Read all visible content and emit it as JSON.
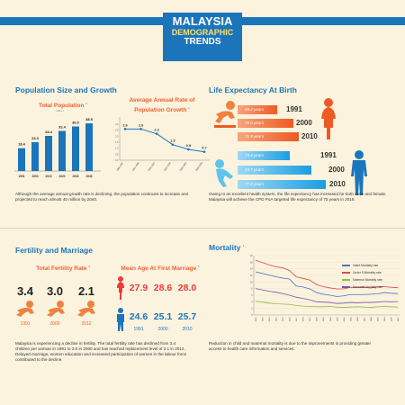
{
  "header": {
    "line1": "MALAYSIA",
    "line2": "DEMOGRAPHIC",
    "line3": "TRENDS"
  },
  "population": {
    "title": "Population Size and Growth",
    "total_title": "Total Population",
    "total_unit": "million",
    "growth_title_1": "Average Annual Rate of",
    "growth_title_2": "Population Growth",
    "paragraph_1": "Although the average annual growth rate is declining, the population continues to increase and",
    "paragraph_2": "projected to reach almost 40 million by 2040."
  },
  "life": {
    "title": "Life Expectancy At Birth",
    "female": [
      {
        "value": "69.2 years",
        "year": "1991"
      },
      {
        "value": "70.0 years",
        "year": "2000"
      },
      {
        "value": "71.9 years",
        "year": "2010"
      }
    ],
    "male": [
      {
        "value": "73.4 years",
        "year": "1991"
      },
      {
        "value": "74.7 years",
        "year": "2000"
      },
      {
        "value": "77.0 years",
        "year": "2010"
      }
    ],
    "paragraph_1": "Owing to an excellent health system, the life expectancy has increased for both male and female.",
    "paragraph_2": "Malaysia will achieve the  CPD PoA targeted life expectancy of 75 years in 2015."
  },
  "fertility": {
    "title": "Fertility and Marriage",
    "tfr_title": "Total Fertility Rate",
    "tfr": [
      {
        "value": "3.4",
        "year": "1991"
      },
      {
        "value": "3.0",
        "year": "2000"
      },
      {
        "value": "2.1",
        "year": "2012"
      }
    ],
    "age_title": "Mean Age At First Marriage",
    "female_ages": [
      "27.9",
      "28.6",
      "28.0"
    ],
    "male_ages": [
      "24.6",
      "25.1",
      "25.7"
    ],
    "age_years": [
      "1991",
      "2000",
      "2010"
    ],
    "paragraph_1": "Malaysia is experiencing a decline in fertility. The total fertility rate has declined from 3.4",
    "paragraph_2": "children per woman in 1991 to 3.0 in 2000 and has reached replacement level of 2.1 in 2012.",
    "paragraph_3": "Delayed marriage, women education and increased participation of women in the labour force",
    "paragraph_4": "contributed to the decline."
  },
  "mortality": {
    "title": "Mortality",
    "paragraph_1": "Reduction in child and maternal mortality is due to the improvements in providing greater",
    "paragraph_2": "access to health care information and services."
  },
  "colors": {
    "blue": "#1b75bb",
    "orange": "#f06030",
    "red": "#ee3a3a",
    "background": "#fbf3de"
  },
  "chart_data": [
    {
      "type": "bar",
      "title": "Total Population",
      "categories": [
        "1991",
        "2000",
        "2010",
        "2020",
        "2030",
        "2040"
      ],
      "values": [
        18.4,
        23.3,
        28.4,
        32.4,
        36.0,
        38.5
      ],
      "ylim": [
        0,
        40
      ]
    },
    {
      "type": "line",
      "title": "Average Annual Rate of Population Growth",
      "categories": [
        "1980-1991",
        "1991-2000",
        "2000-2010",
        "2010-2020",
        "2020-2030",
        "2030-2040"
      ],
      "values": [
        2.6,
        2.6,
        2.2,
        1.3,
        0.9,
        0.7
      ],
      "ylim": [
        0,
        3
      ]
    },
    {
      "type": "line",
      "title": "Mortality",
      "x": [
        1991,
        1992,
        1993,
        1994,
        1995,
        1996,
        1997,
        1998,
        1999,
        2000,
        2001,
        2002,
        2003,
        2004,
        2005,
        2006,
        2007,
        2008,
        2009,
        2010,
        2011,
        2012
      ],
      "series": [
        {
          "name": "Infant Mortality rate",
          "color": "#4a74c9",
          "values": [
            13.1,
            12.6,
            12.1,
            11.6,
            11.2,
            10.9,
            8.8,
            8.5,
            7.9,
            6.8,
            6.3,
            6.0,
            5.6,
            5.8,
            6.2,
            6.2,
            6.2,
            6.3,
            6.4,
            6.8,
            6.6,
            6.5
          ]
        },
        {
          "name": "Under 5 Mortality rate",
          "color": "#d94848",
          "values": [
            16.6,
            15.9,
            15.2,
            14.6,
            14.3,
            13.5,
            11.6,
            11.1,
            10.6,
            9.2,
            8.6,
            8.2,
            7.9,
            7.9,
            8.4,
            8.3,
            8.4,
            8.2,
            8.5,
            8.6,
            8.4,
            8.3
          ]
        },
        {
          "name": "Maternal Mortality rate",
          "color": "#8dbd3f",
          "values": [
            4.2,
            3.9,
            3.6,
            3.4,
            3.3,
            3.2,
            2.9,
            2.7,
            2.6,
            2.5,
            2.5,
            2.6,
            2.4,
            2.3,
            2.4,
            2.5,
            2.4,
            2.3,
            2.5,
            2.6,
            2.5,
            2.4
          ]
        },
        {
          "name": "Neonatal Mortality rate",
          "color": "#7a54a8",
          "values": [
            8.0,
            7.6,
            7.2,
            6.9,
            6.5,
            6.0,
            5.4,
            5.0,
            4.6,
            4.0,
            3.9,
            3.8,
            3.5,
            3.6,
            3.8,
            3.7,
            3.8,
            3.8,
            3.9,
            4.1,
            4.0,
            4.1
          ]
        }
      ],
      "ylim": [
        0,
        18
      ]
    }
  ]
}
